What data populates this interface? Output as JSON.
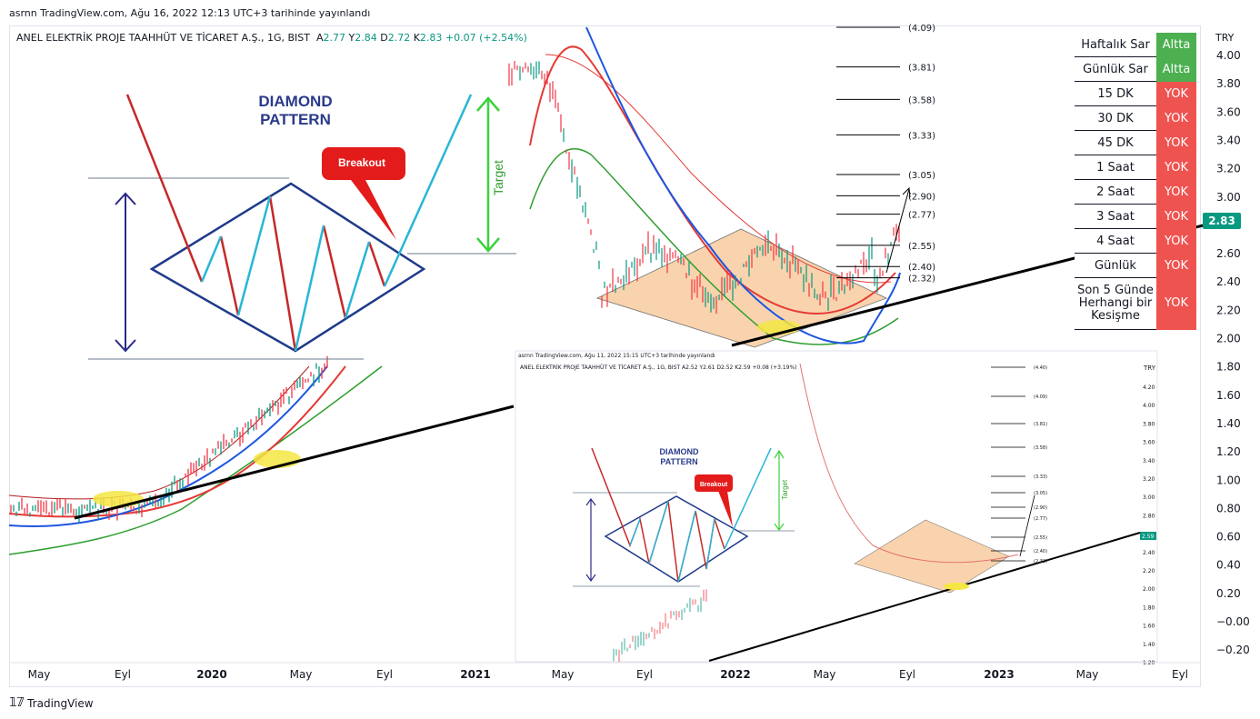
{
  "caption": "asrnn TradingView.com, Ağu 16, 2022 12:13 UTC+3 tarihinde yayınlandı",
  "symbol": {
    "name": "ANEL ELEKTRİK PROJE TAAHHÜT VE TİCARET A.Ş., 1G, BIST",
    "a_label": "A",
    "a": "2.77",
    "y_label": "Y",
    "y": "2.84",
    "d_label": "D",
    "d": "2.72",
    "k_label": "K",
    "k": "2.83",
    "change": "+0.07 (+2.54%)"
  },
  "current_price": "2.83",
  "currency": "TRY",
  "colors": {
    "up": "#089981",
    "down": "#f23645",
    "red_cell": "#ef5350",
    "green_cell": "#4caf50",
    "fib_box": "#f7c592",
    "diamond": "#1e3a8a",
    "highlight": "#f5e642"
  },
  "sar_table": [
    {
      "label": "Haftalık Sar",
      "value": "Altta",
      "status": "green"
    },
    {
      "label": "Günlük Sar",
      "value": "Altta",
      "status": "green"
    },
    {
      "label": "15 DK",
      "value": "YOK",
      "status": "red"
    },
    {
      "label": "30 DK",
      "value": "YOK",
      "status": "red"
    },
    {
      "label": "45 DK",
      "value": "YOK",
      "status": "red"
    },
    {
      "label": "1 Saat",
      "value": "YOK",
      "status": "red"
    },
    {
      "label": "2 Saat",
      "value": "YOK",
      "status": "red"
    },
    {
      "label": "3 Saat",
      "value": "YOK",
      "status": "red"
    },
    {
      "label": "4 Saat",
      "value": "YOK",
      "status": "red"
    },
    {
      "label": "Günlük",
      "value": "YOK",
      "status": "red"
    },
    {
      "label": "Son 5 Günde Herhangi bir Kesişme",
      "value": "YOK",
      "status": "red"
    }
  ],
  "diamond_text": {
    "title_line1": "DIAMOND",
    "title_line2": "PATTERN",
    "breakout": "Breakout",
    "target": "Target"
  },
  "fib_levels": [
    "(4.09)",
    "(3.81)",
    "(3.58)",
    "(3.33)",
    "(3.05)",
    "(2.90)",
    "(2.77)",
    "(2.55)",
    "(2.40)",
    "(2.32)"
  ],
  "inset": {
    "caption": "asrnn TradingView.com, Ağu 11, 2022 15:15 UTC+3 tarihinde yayınlandı",
    "symbol": "ANEL ELEKTRİK PROJE TAAHHÜT VE TİCARET A.Ş., 1G, BIST A2.52 Y2.61 D2.52 K2.59 +0.08 (+3.19%)",
    "currency": "TRY",
    "price_tag": "2.59",
    "y_ticks": [
      "4.20",
      "4.00",
      "3.80",
      "3.60",
      "3.40",
      "3.20",
      "3.00",
      "2.80",
      "2.60",
      "2.40",
      "2.20",
      "2.00",
      "1.80",
      "1.60",
      "1.40",
      "1.20"
    ],
    "fib_levels": [
      "(4.40)",
      "(4.09)",
      "(3.81)",
      "(3.58)",
      "(3.33)",
      "(3.05)",
      "(2.90)",
      "(2.77)",
      "(2.55)",
      "(2.40)",
      "(2.32)"
    ]
  },
  "chart_data": {
    "type": "candlestick",
    "title": "ANEL ELEKTRİK PROJE TAAHHÜT VE TİCARET A.Ş., 1G, BIST",
    "ylabel": "TRY",
    "ylim": [
      -0.2,
      4.1
    ],
    "y_ticks": [
      "4.00",
      "3.80",
      "3.60",
      "3.40",
      "3.20",
      "3.00",
      "2.80",
      "2.60",
      "2.40",
      "2.20",
      "2.00",
      "1.80",
      "1.60",
      "1.40",
      "1.20",
      "1.00",
      "0.80",
      "0.60",
      "0.40",
      "0.20",
      "−0.00",
      "−0.20"
    ],
    "x_ticks": [
      "May",
      "Eyl",
      "2020",
      "May",
      "Eyl",
      "2021",
      "May",
      "Eyl",
      "2022",
      "May",
      "Eyl",
      "2023",
      "May",
      "Eyl"
    ],
    "fib_levels": [
      4.09,
      3.81,
      3.58,
      3.33,
      3.05,
      2.9,
      2.77,
      2.55,
      2.4,
      2.32
    ],
    "last": {
      "open": 2.77,
      "high": 2.84,
      "low": 2.72,
      "close": 2.83
    }
  }
}
